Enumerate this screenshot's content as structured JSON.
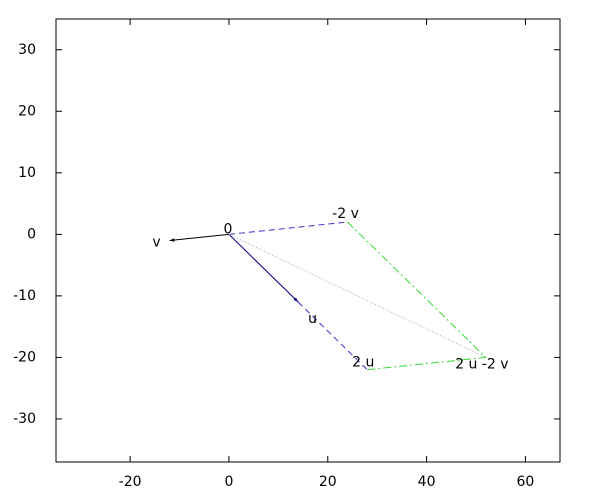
{
  "chart_data": {
    "type": "vector",
    "xlim": [
      -35,
      67
    ],
    "ylim": [
      -37,
      35
    ],
    "xticks": [
      -20,
      0,
      20,
      40,
      60
    ],
    "yticks": [
      -30,
      -20,
      -10,
      0,
      10,
      20,
      30
    ],
    "points": [
      {
        "label": "0",
        "x": 0,
        "y": 0
      },
      {
        "label": "v",
        "x": -12,
        "y": -1
      },
      {
        "label": "u",
        "x": 14,
        "y": -11
      },
      {
        "label": "-2 v",
        "x": 24,
        "y": 2
      },
      {
        "label": "2 u",
        "x": 28,
        "y": -22
      },
      {
        "label": "2 u -2 v",
        "x": 52,
        "y": -20
      }
    ],
    "segments": [
      {
        "from": 0,
        "to": 1,
        "color": "#000000",
        "style": "solid",
        "arrow": true
      },
      {
        "from": 0,
        "to": 2,
        "color": "#000080",
        "style": "solid",
        "arrow": true
      },
      {
        "from": 0,
        "to": 3,
        "color": "#3333cc",
        "style": "dashed",
        "arrow": false
      },
      {
        "from": 2,
        "to": 4,
        "color": "#3333cc",
        "style": "dashed",
        "arrow": false
      },
      {
        "from": 3,
        "to": 5,
        "color": "#33dd33",
        "style": "dashdot",
        "arrow": false
      },
      {
        "from": 4,
        "to": 5,
        "color": "#33dd33",
        "style": "dashdot",
        "arrow": false
      },
      {
        "from": 0,
        "to": 5,
        "color": "#aaaaaa",
        "style": "dotted",
        "arrow": false
      }
    ]
  }
}
